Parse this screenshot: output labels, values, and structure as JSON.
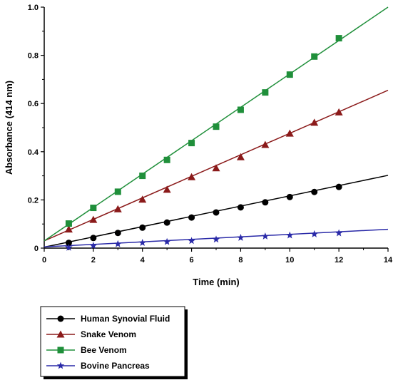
{
  "chart_data": {
    "type": "scatter",
    "xlabel": "Time (min)",
    "ylabel": "Absorbance (414 nm)",
    "xlim": [
      0,
      14
    ],
    "ylim": [
      0,
      1.0
    ],
    "x_ticks": [
      0,
      2,
      4,
      6,
      8,
      10,
      12,
      14
    ],
    "y_ticks": [
      0,
      0.2,
      0.4,
      0.6,
      0.8,
      1.0
    ],
    "x_tick_labels": [
      "0",
      "2",
      "4",
      "6",
      "8",
      "10",
      "12",
      "14"
    ],
    "y_tick_labels": [
      "0",
      "0.2",
      "0.4",
      "0.6",
      "0.8",
      "1.0"
    ],
    "grid": false,
    "legend_position": "bottom-left, below plot",
    "series": [
      {
        "name": "Human Synovial Fluid",
        "marker": "circle",
        "color": "#000000",
        "x": [
          1,
          2,
          3,
          4,
          5,
          6,
          7,
          8,
          9,
          10,
          11,
          12
        ],
        "y": [
          0.022,
          0.042,
          0.063,
          0.085,
          0.106,
          0.127,
          0.148,
          0.169,
          0.19,
          0.212,
          0.233,
          0.254
        ],
        "fit": [
          [
            0,
            0.004
          ],
          [
            14,
            0.302
          ]
        ]
      },
      {
        "name": "Snake Venom",
        "marker": "triangle",
        "color": "#8b1a1a",
        "x": [
          1,
          2,
          3,
          4,
          5,
          6,
          7,
          8,
          9,
          10,
          11,
          12
        ],
        "y": [
          0.078,
          0.118,
          0.162,
          0.202,
          0.243,
          0.295,
          0.332,
          0.378,
          0.429,
          0.476,
          0.521,
          0.564
        ],
        "fit": [
          [
            0,
            0.03
          ],
          [
            14,
            0.655
          ]
        ]
      },
      {
        "name": "Bee Venom",
        "marker": "square",
        "color": "#1f8f3a",
        "x": [
          1,
          2,
          3,
          4,
          5,
          6,
          7,
          8,
          9,
          10,
          11,
          12
        ],
        "y": [
          0.102,
          0.167,
          0.234,
          0.3,
          0.366,
          0.436,
          0.504,
          0.574,
          0.646,
          0.72,
          0.795,
          0.871
        ],
        "fit": [
          [
            0,
            0.03
          ],
          [
            14,
            1.0
          ]
        ]
      },
      {
        "name": "Bovine Pancreas",
        "marker": "star",
        "color": "#2a2aa8",
        "x": [
          1,
          2,
          3,
          4,
          5,
          6,
          7,
          8,
          9,
          10,
          11,
          12
        ],
        "y": [
          0.002,
          0.01,
          0.017,
          0.022,
          0.026,
          0.03,
          0.036,
          0.043,
          0.049,
          0.053,
          0.058,
          0.062
        ],
        "fit": [
          [
            0,
            0.005
          ],
          [
            14,
            0.078
          ]
        ]
      }
    ]
  }
}
